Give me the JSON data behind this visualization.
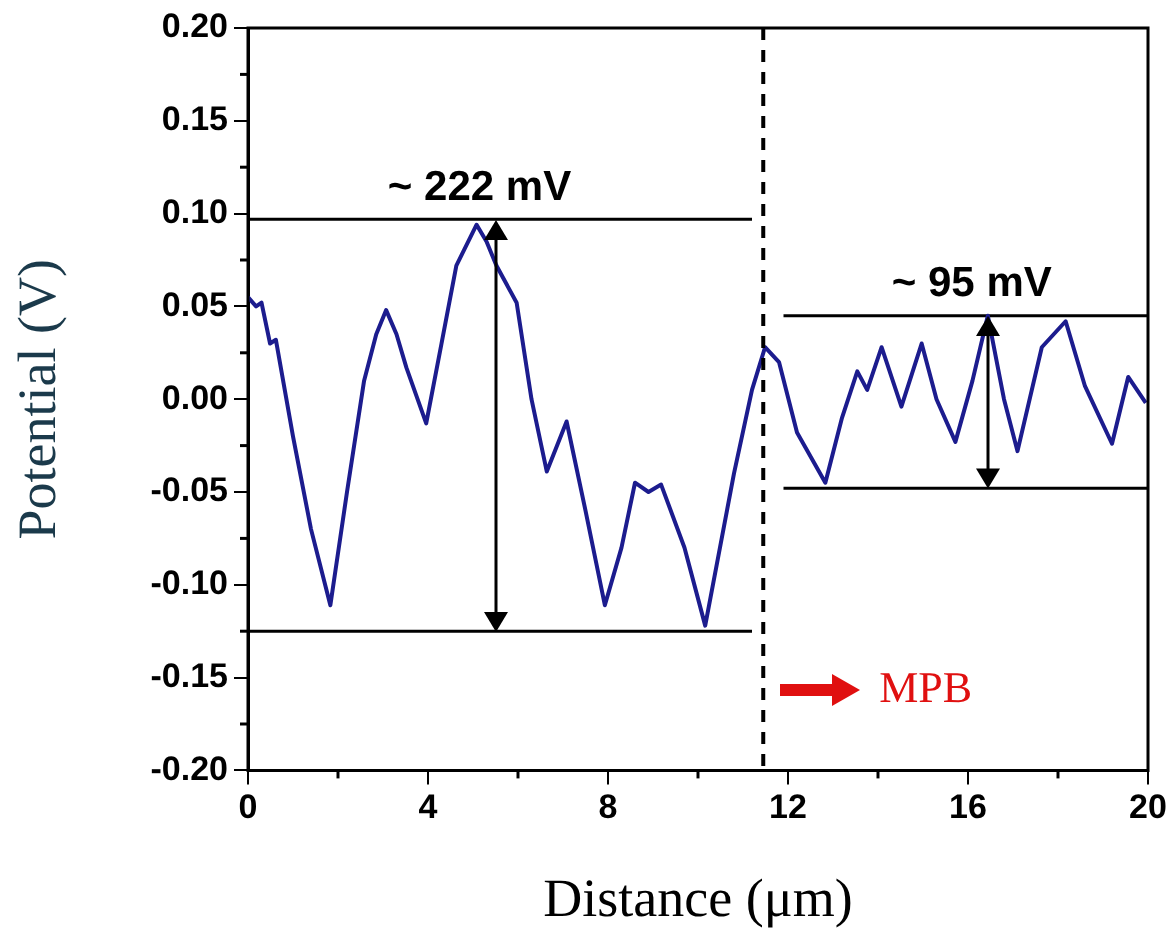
{
  "chart_data": {
    "type": "line",
    "xlabel": "Distance (μm)",
    "ylabel": "Potential (V)",
    "xlim": [
      0,
      20
    ],
    "xticks": [
      0,
      4,
      8,
      12,
      16,
      20
    ],
    "ylim": [
      -0.2,
      0.2
    ],
    "yticks": [
      {
        "value": -0.2,
        "label": "-0.20"
      },
      {
        "value": -0.15,
        "label": "-0.15"
      },
      {
        "value": -0.1,
        "label": "-0.10"
      },
      {
        "value": -0.05,
        "label": "-0.05"
      },
      {
        "value": 0,
        "label": "0.00"
      },
      {
        "value": 0.05,
        "label": "0.05"
      },
      {
        "value": 0.1,
        "label": "0.10"
      },
      {
        "value": 0.15,
        "label": "0.15"
      },
      {
        "value": 0.2,
        "label": "0.20"
      }
    ],
    "grid": false,
    "legend": false,
    "series": [
      {
        "color": "#1c1c8e",
        "x": [
          0,
          0.18,
          0.3,
          0.49,
          0.62,
          1.0,
          1.4,
          1.83,
          2.2,
          2.58,
          2.85,
          3.07,
          3.3,
          3.52,
          3.96,
          4.3,
          4.63,
          5.08,
          5.3,
          5.52,
          5.97,
          6.3,
          6.64,
          7.08,
          7.5,
          7.93,
          8.3,
          8.6,
          8.9,
          9.18,
          9.7,
          10.16,
          10.8,
          11.2,
          11.49,
          11.8,
          12.2,
          12.83,
          13.2,
          13.54,
          13.76,
          14.08,
          14.52,
          14.97,
          15.3,
          15.72,
          16.1,
          16.44,
          16.8,
          17.1,
          17.64,
          18.17,
          18.6,
          19.2,
          19.56,
          19.95
        ],
        "values": [
          0.055,
          0.05,
          0.052,
          0.03,
          0.032,
          -0.02,
          -0.07,
          -0.111,
          -0.05,
          0.01,
          0.035,
          0.048,
          0.035,
          0.017,
          -0.013,
          0.03,
          0.072,
          0.094,
          0.085,
          0.072,
          0.052,
          0.0,
          -0.039,
          -0.012,
          -0.06,
          -0.111,
          -0.08,
          -0.045,
          -0.05,
          -0.046,
          -0.08,
          -0.122,
          -0.04,
          0.005,
          0.028,
          0.02,
          -0.018,
          -0.045,
          -0.01,
          0.015,
          0.005,
          0.028,
          -0.004,
          0.03,
          0.0,
          -0.023,
          0.01,
          0.045,
          0.0,
          -0.028,
          0.028,
          0.042,
          0.007,
          -0.024,
          0.012,
          -0.002
        ]
      },
      {
        "color": "#000000",
        "x": [
          0,
          11.2
        ],
        "values": [
          0.097,
          0.097
        ]
      },
      {
        "color": "#000000",
        "x": [
          0,
          11.2
        ],
        "values": [
          -0.125,
          -0.125
        ]
      },
      {
        "color": "#000000",
        "x": [
          11.9,
          20
        ],
        "values": [
          0.045,
          0.045
        ]
      },
      {
        "color": "#000000",
        "x": [
          11.9,
          20
        ],
        "values": [
          -0.048,
          -0.048
        ]
      }
    ],
    "ref_lines": [
      {
        "axis": "x",
        "value": 11.45,
        "color": "#000000",
        "line_style": "dashed"
      }
    ],
    "annotations": [
      {
        "text": "~ 222 mV",
        "x": 5.5,
        "y": 0.097
      },
      {
        "text": "~ 95 mV",
        "x": 16.44,
        "y": 0.045
      },
      "MPB"
    ]
  }
}
